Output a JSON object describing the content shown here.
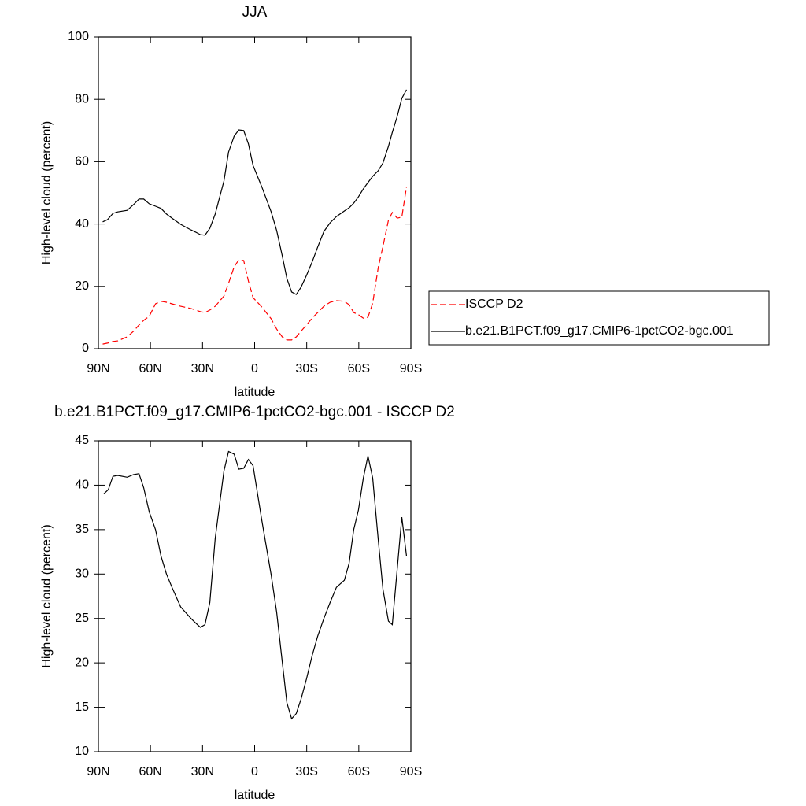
{
  "chart_data": [
    {
      "type": "line",
      "title": "JJA",
      "xlabel": "latitude",
      "ylabel": "High-level cloud (percent)",
      "x": [
        87.5,
        84.8,
        81.6,
        78.9,
        73.4,
        69.8,
        66.6,
        63.9,
        60.7,
        57.1,
        53.9,
        50.8,
        47.6,
        42.6,
        36.7,
        34,
        31.3,
        28.6,
        25.8,
        22.7,
        17.7,
        15,
        11.8,
        9.1,
        6.3,
        3.6,
        0.9,
        -4.1,
        -9.5,
        -12.7,
        -15.9,
        -18.6,
        -21.3,
        -24,
        -26.7,
        -29.9,
        -33.1,
        -36.3,
        -39.9,
        -43.5,
        -47.1,
        -51.7,
        -54.4,
        -57.1,
        -59.8,
        -62.6,
        -65.3,
        -68,
        -71.2,
        -73.9,
        -77.1,
        -79.3,
        -82.1,
        -84.8,
        -87.5
      ],
      "series": [
        {
          "name": "ISCCP D2",
          "color": "#ff0000",
          "line_style": "dashed",
          "values": [
            1.5,
            1.8,
            2.3,
            2.5,
            3.8,
            5.6,
            7.6,
            9.1,
            10.4,
            14.4,
            15.2,
            14.9,
            14.4,
            13.6,
            12.9,
            12.4,
            11.9,
            11.6,
            12.4,
            13.6,
            16.9,
            21,
            26.3,
            28.5,
            28.3,
            21.7,
            16.4,
            13.4,
            9.6,
            6.3,
            3.8,
            2.8,
            2.8,
            3.8,
            5.6,
            7.6,
            9.8,
            11.6,
            13.6,
            14.9,
            15.4,
            15.2,
            14.1,
            11.6,
            10.9,
            9.8,
            10.1,
            14.6,
            26,
            32.8,
            41.2,
            43.7,
            41.9,
            42.2,
            52
          ]
        },
        {
          "name": "b.e21.B1PCT.f09_g17.CMIP6-1pctCO2-bgc.001",
          "color": "#000000",
          "line_style": "solid",
          "values": [
            40.7,
            41.4,
            43.4,
            43.9,
            44.4,
            46.2,
            48,
            48,
            46.5,
            45.7,
            45,
            43.2,
            41.9,
            39.9,
            38.1,
            37.4,
            36.6,
            36.4,
            38.6,
            43.2,
            53.8,
            63.1,
            68.2,
            70.2,
            70,
            65.7,
            58.8,
            52,
            43.9,
            37.9,
            29.8,
            22.5,
            18.2,
            17.4,
            19.7,
            23.5,
            27.8,
            32.6,
            37.6,
            40.4,
            42.4,
            44.2,
            45.2,
            46.7,
            48.7,
            51.3,
            53.3,
            55.3,
            57.1,
            59.6,
            64.9,
            69.4,
            74.5,
            80.3,
            83.1
          ]
        }
      ],
      "xlim": [
        90,
        -90
      ],
      "xticks": [
        {
          "value": 90,
          "label": "90N"
        },
        {
          "value": 60,
          "label": "60N"
        },
        {
          "value": 30,
          "label": "30N"
        },
        0,
        {
          "value": -30,
          "label": "30S"
        },
        {
          "value": -60,
          "label": "60S"
        },
        {
          "value": -90,
          "label": "90S"
        }
      ],
      "ylim": [
        0,
        100
      ],
      "yticks": [
        0,
        20,
        40,
        60,
        80,
        100
      ],
      "legend": "right"
    },
    {
      "type": "line",
      "title": "b.e21.B1PCT.f09_g17.CMIP6-1pctCO2-bgc.001 - ISCCP D2",
      "xlabel": "latitude",
      "ylabel": "High-level cloud (percent)",
      "x": [
        87,
        84.3,
        81.6,
        78.9,
        73.4,
        69.8,
        66.6,
        63.9,
        60.7,
        57.1,
        53.9,
        50.8,
        47.6,
        42.6,
        36.7,
        34,
        31.3,
        28.6,
        25.8,
        22.7,
        17.7,
        15,
        11.8,
        9.1,
        6.3,
        3.6,
        0.9,
        -4.1,
        -9.5,
        -12.7,
        -15.9,
        -18.6,
        -21.3,
        -24,
        -26.7,
        -29.9,
        -33.1,
        -36.3,
        -39.9,
        -43.5,
        -47.1,
        -51.7,
        -54.4,
        -57.1,
        -59.8,
        -62.6,
        -65.3,
        -68,
        -71.2,
        -73.9,
        -77.1,
        -79.3,
        -82.1,
        -84.8,
        -87.5
      ],
      "series": [
        {
          "color": "#000000",
          "line_style": "solid",
          "values": [
            39,
            39.5,
            41,
            41.1,
            40.9,
            41.2,
            41.3,
            39.7,
            37,
            35,
            32,
            30,
            28.5,
            26.3,
            25,
            24.5,
            24,
            24.3,
            26.8,
            34,
            41.6,
            43.8,
            43.5,
            41.8,
            41.9,
            42.9,
            42.2,
            36.1,
            29.9,
            25.7,
            20.1,
            15.5,
            13.7,
            14.3,
            15.9,
            18.2,
            20.8,
            23,
            25,
            26.8,
            28.5,
            29.3,
            31.2,
            35,
            37.2,
            40.8,
            43.3,
            40.8,
            33.9,
            28.3,
            24.7,
            24.3,
            30.5,
            36.4,
            32
          ]
        }
      ],
      "xlim": [
        90,
        -90
      ],
      "xticks": [
        {
          "value": 90,
          "label": "90N"
        },
        {
          "value": 60,
          "label": "60N"
        },
        {
          "value": 30,
          "label": "30N"
        },
        0,
        {
          "value": -30,
          "label": "30S"
        },
        {
          "value": -60,
          "label": "60S"
        },
        {
          "value": -90,
          "label": "90S"
        }
      ],
      "ylim": [
        10,
        45
      ],
      "yticks": [
        10,
        15,
        20,
        25,
        30,
        35,
        40,
        45
      ]
    }
  ]
}
